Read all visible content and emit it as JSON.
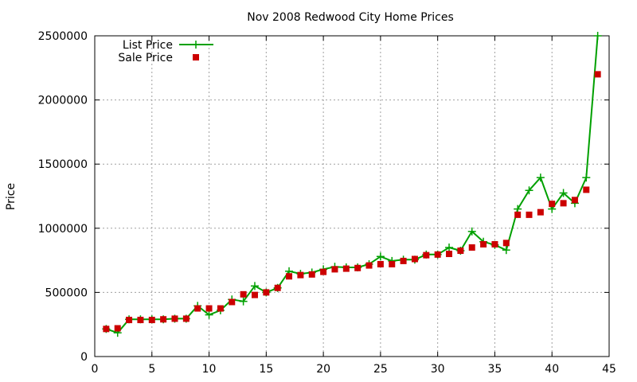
{
  "chart_data": {
    "type": "line",
    "title": "Nov 2008 Redwood City Home Prices",
    "xlabel": "",
    "ylabel": "Price",
    "xlim": [
      0,
      45
    ],
    "ylim": [
      0,
      2500000
    ],
    "x_ticks": [
      0,
      5,
      10,
      15,
      20,
      25,
      30,
      35,
      40,
      45
    ],
    "y_ticks": [
      0,
      500000,
      1000000,
      1500000,
      2000000,
      2500000
    ],
    "x_tick_labels": [
      "0",
      "5",
      "10",
      "15",
      "20",
      "25",
      "30",
      "35",
      "40",
      "45"
    ],
    "y_tick_labels": [
      "0",
      "500000",
      "1000000",
      "1500000",
      "2000000",
      "2500000"
    ],
    "grid": true,
    "legend_position": "top-left",
    "series": [
      {
        "name": "List Price",
        "style": "line-with-plus-markers",
        "color": "#00a000",
        "x": [
          1,
          2,
          3,
          4,
          5,
          6,
          7,
          8,
          9,
          10,
          11,
          12,
          13,
          14,
          15,
          16,
          17,
          18,
          19,
          20,
          21,
          22,
          23,
          24,
          25,
          26,
          27,
          28,
          29,
          30,
          31,
          32,
          33,
          34,
          35,
          36,
          37,
          38,
          39,
          40,
          41,
          42,
          43,
          44
        ],
        "y": [
          215000,
          185000,
          290000,
          290000,
          290000,
          290000,
          295000,
          295000,
          395000,
          325000,
          360000,
          445000,
          430000,
          550000,
          500000,
          535000,
          665000,
          645000,
          655000,
          680000,
          700000,
          695000,
          695000,
          720000,
          780000,
          745000,
          755000,
          755000,
          795000,
          795000,
          850000,
          825000,
          975000,
          895000,
          870000,
          830000,
          1150000,
          1295000,
          1395000,
          1150000,
          1275000,
          1195000,
          1395000,
          2500000
        ]
      },
      {
        "name": "Sale Price",
        "style": "square-markers",
        "color": "#cc0000",
        "x": [
          1,
          2,
          3,
          4,
          5,
          6,
          7,
          8,
          9,
          10,
          11,
          12,
          13,
          14,
          15,
          16,
          17,
          18,
          19,
          20,
          21,
          22,
          23,
          24,
          25,
          26,
          27,
          28,
          29,
          30,
          31,
          32,
          33,
          34,
          35,
          36,
          37,
          38,
          39,
          40,
          41,
          42,
          43,
          44
        ],
        "y": [
          215000,
          220000,
          285000,
          285000,
          285000,
          290000,
          295000,
          295000,
          375000,
          375000,
          375000,
          425000,
          485000,
          480000,
          500000,
          535000,
          625000,
          635000,
          640000,
          660000,
          680000,
          685000,
          690000,
          710000,
          720000,
          720000,
          745000,
          760000,
          790000,
          795000,
          800000,
          825000,
          850000,
          875000,
          875000,
          885000,
          1105000,
          1105000,
          1125000,
          1190000,
          1195000,
          1220000,
          1300000,
          2200000
        ]
      }
    ]
  }
}
